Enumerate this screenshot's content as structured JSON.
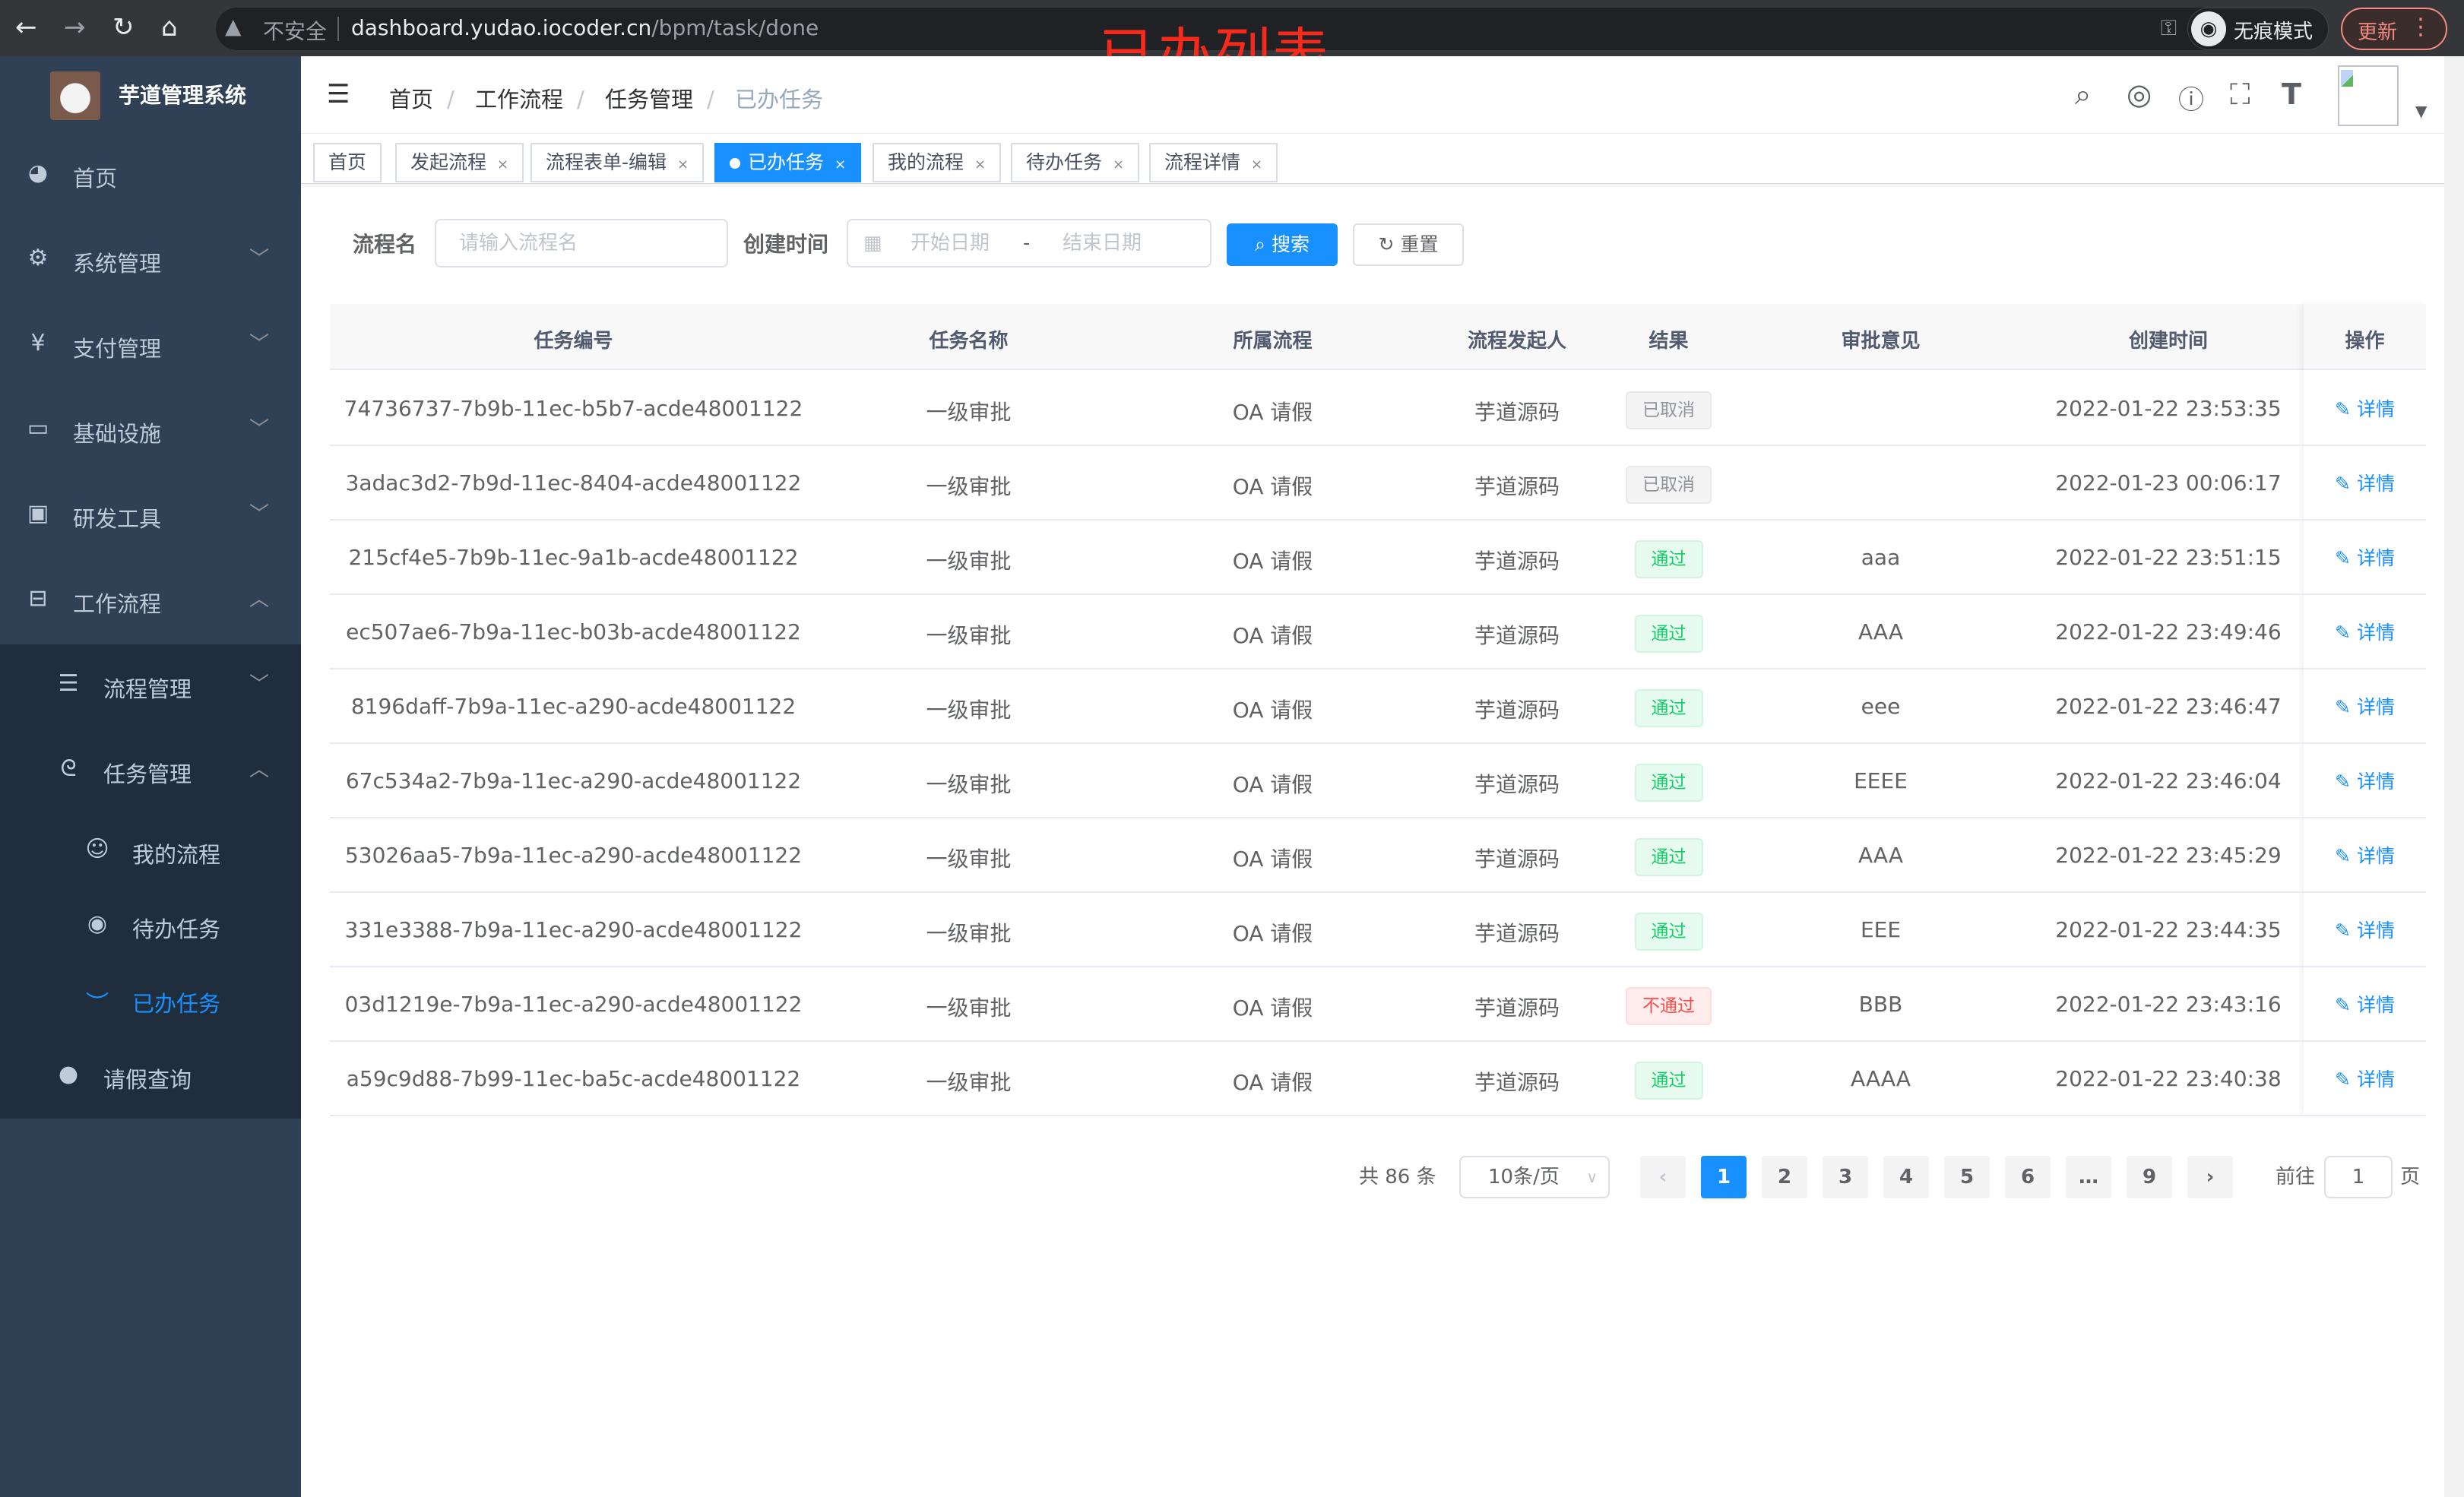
{
  "browser": {
    "insecure_label": "不安全",
    "url_host": "dashboard.yudao.iocoder.cn",
    "url_path": "/bpm/task/done",
    "incognito_label": "无痕模式",
    "update_label": "更新"
  },
  "overlay_title": "已办列表",
  "sidebar": {
    "app_name": "芋道管理系统",
    "items": [
      {
        "label": "首页",
        "icon": "dashboard-icon"
      },
      {
        "label": "系统管理",
        "icon": "gear-icon"
      },
      {
        "label": "支付管理",
        "icon": "yen-icon"
      },
      {
        "label": "基础设施",
        "icon": "monitor-icon"
      },
      {
        "label": "研发工具",
        "icon": "toolbox-icon"
      },
      {
        "label": "工作流程",
        "icon": "briefcase-icon"
      },
      {
        "label": "流程管理",
        "icon": "list-icon"
      },
      {
        "label": "任务管理",
        "icon": "task-icon"
      },
      {
        "label": "我的流程",
        "icon": "robot-icon"
      },
      {
        "label": "待办任务",
        "icon": "eye-icon"
      },
      {
        "label": "已办任务",
        "icon": "eye-closed-icon"
      },
      {
        "label": "请假查询",
        "icon": "user-icon"
      }
    ]
  },
  "breadcrumb": [
    "首页",
    "工作流程",
    "任务管理",
    "已办任务"
  ],
  "tags": [
    {
      "label": "首页",
      "closable": false
    },
    {
      "label": "发起流程",
      "closable": true
    },
    {
      "label": "流程表单-编辑",
      "closable": true
    },
    {
      "label": "已办任务",
      "closable": true,
      "active": true
    },
    {
      "label": "我的流程",
      "closable": true
    },
    {
      "label": "待办任务",
      "closable": true
    },
    {
      "label": "流程详情",
      "closable": true
    }
  ],
  "search": {
    "name_label": "流程名",
    "name_placeholder": "请输入流程名",
    "time_label": "创建时间",
    "start_placeholder": "开始日期",
    "range_sep": "-",
    "end_placeholder": "结束日期",
    "search_button": "搜索",
    "reset_button": "重置"
  },
  "table": {
    "columns": [
      "任务编号",
      "任务名称",
      "所属流程",
      "流程发起人",
      "结果",
      "审批意见",
      "创建时间",
      "操作"
    ],
    "action_label": "详情",
    "rows": [
      {
        "id": "74736737-7b9b-11ec-b5b7-acde48001122",
        "name": "一级审批",
        "process": "OA 请假",
        "starter": "芋道源码",
        "result": "已取消",
        "result_type": "info",
        "comment": "",
        "time": "2022-01-22 23:53:35"
      },
      {
        "id": "3adac3d2-7b9d-11ec-8404-acde48001122",
        "name": "一级审批",
        "process": "OA 请假",
        "starter": "芋道源码",
        "result": "已取消",
        "result_type": "info",
        "comment": "",
        "time": "2022-01-23 00:06:17"
      },
      {
        "id": "215cf4e5-7b9b-11ec-9a1b-acde48001122",
        "name": "一级审批",
        "process": "OA 请假",
        "starter": "芋道源码",
        "result": "通过",
        "result_type": "success",
        "comment": "aaa",
        "time": "2022-01-22 23:51:15"
      },
      {
        "id": "ec507ae6-7b9a-11ec-b03b-acde48001122",
        "name": "一级审批",
        "process": "OA 请假",
        "starter": "芋道源码",
        "result": "通过",
        "result_type": "success",
        "comment": "AAA",
        "time": "2022-01-22 23:49:46"
      },
      {
        "id": "8196daff-7b9a-11ec-a290-acde48001122",
        "name": "一级审批",
        "process": "OA 请假",
        "starter": "芋道源码",
        "result": "通过",
        "result_type": "success",
        "comment": "eee",
        "time": "2022-01-22 23:46:47"
      },
      {
        "id": "67c534a2-7b9a-11ec-a290-acde48001122",
        "name": "一级审批",
        "process": "OA 请假",
        "starter": "芋道源码",
        "result": "通过",
        "result_type": "success",
        "comment": "EEEE",
        "time": "2022-01-22 23:46:04"
      },
      {
        "id": "53026aa5-7b9a-11ec-a290-acde48001122",
        "name": "一级审批",
        "process": "OA 请假",
        "starter": "芋道源码",
        "result": "通过",
        "result_type": "success",
        "comment": "AAA",
        "time": "2022-01-22 23:45:29"
      },
      {
        "id": "331e3388-7b9a-11ec-a290-acde48001122",
        "name": "一级审批",
        "process": "OA 请假",
        "starter": "芋道源码",
        "result": "通过",
        "result_type": "success",
        "comment": "EEE",
        "time": "2022-01-22 23:44:35"
      },
      {
        "id": "03d1219e-7b9a-11ec-a290-acde48001122",
        "name": "一级审批",
        "process": "OA 请假",
        "starter": "芋道源码",
        "result": "不通过",
        "result_type": "danger",
        "comment": "BBB",
        "time": "2022-01-22 23:43:16"
      },
      {
        "id": "a59c9d88-7b99-11ec-ba5c-acde48001122",
        "name": "一级审批",
        "process": "OA 请假",
        "starter": "芋道源码",
        "result": "通过",
        "result_type": "success",
        "comment": "AAAA",
        "time": "2022-01-22 23:40:38"
      }
    ]
  },
  "pagination": {
    "total_text": "共 86 条",
    "page_size": "10条/页",
    "pages": [
      "1",
      "2",
      "3",
      "4",
      "5",
      "6",
      "…",
      "9"
    ],
    "current": "1",
    "goto_label": "前往",
    "goto_value": "1",
    "page_suffix": "页"
  },
  "colors": {
    "primary": "#1890ff",
    "sidebar": "#304156",
    "success": "#13ce66",
    "danger": "#ff4949",
    "overlay": "#f52a1a"
  }
}
